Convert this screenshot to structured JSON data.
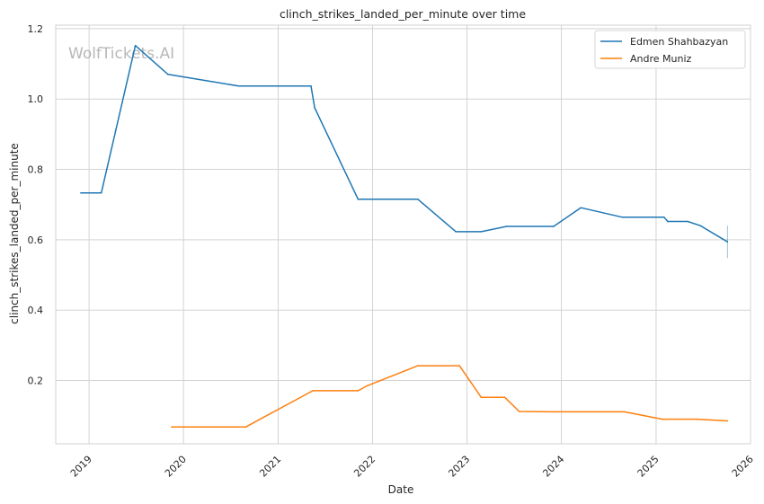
{
  "chart_data": {
    "type": "line",
    "title": "clinch_strikes_landed_per_minute over time",
    "xlabel": "Date",
    "ylabel": "clinch_strikes_landed_per_minute",
    "watermark": "WolfTickets.AI",
    "xlim": [
      "2018-08-25",
      "2026-01-01"
    ],
    "ylim": [
      0.02,
      1.21
    ],
    "x_ticks": [
      "2019",
      "2020",
      "2021",
      "2022",
      "2023",
      "2024",
      "2025",
      "2026"
    ],
    "y_ticks": [
      "0.2",
      "0.4",
      "0.6",
      "0.8",
      "1.0",
      "1.2"
    ],
    "grid": true,
    "legend_position": "top-right",
    "series": [
      {
        "name": "Edmen Shahbazyan",
        "color": "#1f77b4",
        "points": [
          [
            "2018-11-30",
            0.733
          ],
          [
            "2019-02-17",
            0.733
          ],
          [
            "2019-06-29",
            1.152
          ],
          [
            "2019-11-02",
            1.07
          ],
          [
            "2020-08-01",
            1.037
          ],
          [
            "2021-05-08",
            1.037
          ],
          [
            "2021-05-22",
            0.975
          ],
          [
            "2021-11-06",
            0.715
          ],
          [
            "2022-06-25",
            0.715
          ],
          [
            "2022-11-19",
            0.623
          ],
          [
            "2023-02-25",
            0.623
          ],
          [
            "2023-06-03",
            0.638
          ],
          [
            "2023-12-02",
            0.638
          ],
          [
            "2024-03-16",
            0.691
          ],
          [
            "2024-08-24",
            0.664
          ],
          [
            "2025-02-01",
            0.664
          ],
          [
            "2025-02-15",
            0.652
          ],
          [
            "2025-05-03",
            0.652
          ],
          [
            "2025-06-21",
            0.64
          ],
          [
            "2025-10-04",
            0.594
          ]
        ],
        "error_bar": {
          "x": "2025-10-04",
          "low": 0.548,
          "high": 0.64
        }
      },
      {
        "name": "Andre Muniz",
        "color": "#ff7f0e",
        "points": [
          [
            "2019-11-16",
            0.068
          ],
          [
            "2020-08-29",
            0.068
          ],
          [
            "2021-05-15",
            0.171
          ],
          [
            "2021-11-06",
            0.171
          ],
          [
            "2021-12-11",
            0.185
          ],
          [
            "2022-06-25",
            0.242
          ],
          [
            "2022-12-03",
            0.242
          ],
          [
            "2023-02-25",
            0.152
          ],
          [
            "2023-05-27",
            0.152
          ],
          [
            "2023-07-22",
            0.112
          ],
          [
            "2023-12-02",
            0.111
          ],
          [
            "2024-08-31",
            0.111
          ],
          [
            "2025-01-25",
            0.09
          ],
          [
            "2025-06-07",
            0.09
          ],
          [
            "2025-10-04",
            0.085
          ]
        ]
      }
    ]
  }
}
